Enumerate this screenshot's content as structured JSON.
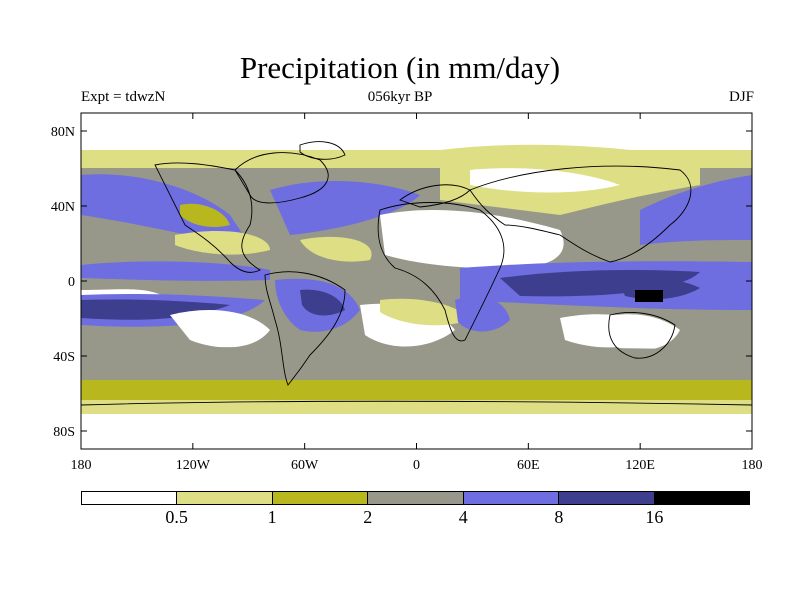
{
  "title": "Precipitation (in mm/day)",
  "experiment": "Expt = tdwzN",
  "period": "056kyr BP",
  "season": "DJF",
  "lat_ticks": [
    "80N",
    "40N",
    "0",
    "40S",
    "80S"
  ],
  "lon_ticks": [
    "180",
    "120W",
    "60W",
    "0",
    "60E",
    "120E",
    "180"
  ],
  "colorbar": {
    "colors": [
      "#ffffff",
      "#dede84",
      "#b8b81e",
      "#98988a",
      "#6e6ee0",
      "#3e3e8e",
      "#000000"
    ],
    "labels": [
      "0.5",
      "1",
      "2",
      "4",
      "8",
      "16"
    ]
  }
}
